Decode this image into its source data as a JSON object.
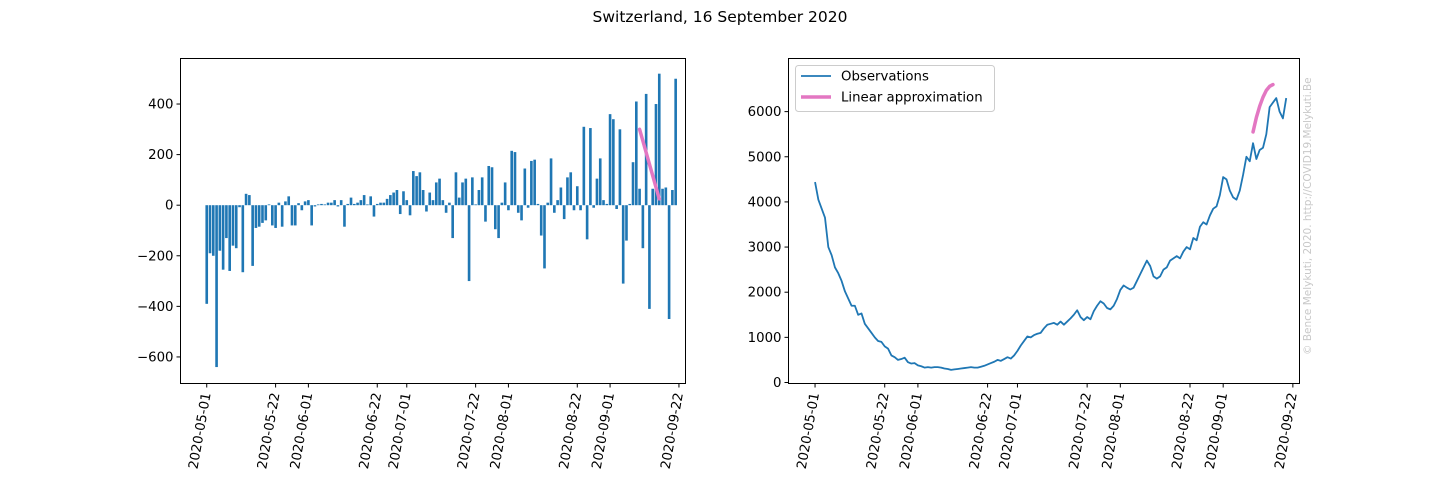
{
  "figure": {
    "suptitle": "Switzerland, 16 September 2020",
    "watermark": "© Bence Melykuti, 2020. http://COVID19.Melykuti.Be"
  },
  "chart_data": [
    {
      "type": "bar",
      "xlim": [
        "2020-04-23",
        "2020-09-24"
      ],
      "ylim": [
        -705,
        580
      ],
      "yticks": [
        400,
        200,
        0,
        -200,
        -400,
        -600
      ],
      "ytick_labels": [
        "400",
        "200",
        "0",
        "−200",
        "−400",
        "−600"
      ],
      "xticks": [
        "2020-05-01",
        "2020-05-22",
        "2020-06-01",
        "2020-06-22",
        "2020-07-01",
        "2020-07-22",
        "2020-08-01",
        "2020-08-22",
        "2020-09-01",
        "2020-09-22"
      ],
      "bar_color": "#1f77b4",
      "line_color": "#e377c2",
      "series": [
        {
          "type": "bar",
          "x_start": "2020-05-01",
          "values": [
            -390,
            -190,
            -200,
            -640,
            -180,
            -255,
            -130,
            -260,
            -160,
            -170,
            -8,
            -265,
            45,
            40,
            -240,
            -90,
            -85,
            -70,
            -60,
            3,
            -80,
            -90,
            10,
            -85,
            15,
            35,
            -80,
            -80,
            8,
            -20,
            15,
            20,
            -80,
            -5,
            3,
            5,
            3,
            10,
            10,
            20,
            -5,
            20,
            -85,
            5,
            30,
            5,
            10,
            20,
            40,
            3,
            35,
            -45,
            5,
            10,
            10,
            25,
            40,
            50,
            60,
            -35,
            55,
            20,
            -40,
            135,
            115,
            130,
            60,
            -25,
            50,
            20,
            90,
            105,
            20,
            -30,
            10,
            -130,
            130,
            30,
            90,
            105,
            -300,
            110,
            3,
            60,
            110,
            -65,
            155,
            150,
            -95,
            -130,
            10,
            90,
            -20,
            215,
            210,
            -30,
            -60,
            145,
            -10,
            175,
            180,
            5,
            -120,
            -250,
            10,
            185,
            -30,
            20,
            70,
            -55,
            110,
            130,
            -20,
            75,
            -20,
            310,
            -135,
            305,
            -10,
            105,
            185,
            20,
            5,
            360,
            340,
            -15,
            300,
            -310,
            -140,
            5,
            170,
            410,
            65,
            -170,
            440,
            -410,
            65,
            400,
            520,
            65,
            70,
            -450,
            60,
            500
          ]
        },
        {
          "type": "line",
          "name": "",
          "points": [
            [
              "2020-09-10",
              300
            ],
            [
              "2020-09-16",
              25
            ]
          ]
        }
      ]
    },
    {
      "type": "line",
      "xlim": [
        "2020-04-23",
        "2020-09-24"
      ],
      "ylim": [
        0,
        6800
      ],
      "yticks": [
        0,
        1000,
        2000,
        3000,
        4000,
        5000,
        6000
      ],
      "xticks": [
        "2020-05-01",
        "2020-05-22",
        "2020-06-01",
        "2020-06-22",
        "2020-07-01",
        "2020-07-22",
        "2020-08-01",
        "2020-08-22",
        "2020-09-01",
        "2020-09-22"
      ],
      "legend_position": "upper left",
      "series": [
        {
          "name": "Observations",
          "color": "#1f77b4",
          "x_start": "2020-05-01",
          "values": [
            4440,
            4050,
            3850,
            3650,
            3000,
            2820,
            2550,
            2420,
            2250,
            2020,
            1860,
            1700,
            1700,
            1500,
            1530,
            1300,
            1200,
            1100,
            1000,
            920,
            900,
            800,
            750,
            600,
            560,
            500,
            520,
            550,
            450,
            420,
            430,
            380,
            360,
            330,
            340,
            330,
            340,
            340,
            330,
            310,
            300,
            280,
            290,
            300,
            310,
            320,
            330,
            340,
            330,
            330,
            350,
            370,
            400,
            430,
            460,
            500,
            480,
            520,
            560,
            530,
            600,
            700,
            820,
            920,
            1020,
            1000,
            1050,
            1080,
            1100,
            1200,
            1280,
            1300,
            1320,
            1280,
            1350,
            1280,
            1350,
            1420,
            1500,
            1600,
            1450,
            1380,
            1450,
            1400,
            1580,
            1700,
            1800,
            1750,
            1650,
            1620,
            1700,
            1850,
            2050,
            2150,
            2100,
            2060,
            2100,
            2250,
            2400,
            2550,
            2700,
            2580,
            2350,
            2300,
            2350,
            2500,
            2550,
            2700,
            2750,
            2800,
            2750,
            2900,
            3000,
            2950,
            3200,
            3150,
            3450,
            3550,
            3500,
            3700,
            3850,
            3900,
            4150,
            4550,
            4500,
            4250,
            4100,
            4050,
            4250,
            4600,
            5000,
            4900,
            5300,
            4950,
            5150,
            5200,
            5500,
            6100,
            6200,
            6300,
            6000,
            5850,
            6300
          ]
        },
        {
          "name": "Linear approximation",
          "color": "#e377c2",
          "points": [
            [
              "2020-09-10",
              5550
            ],
            [
              "2020-09-11",
              5870
            ],
            [
              "2020-09-12",
              6120
            ],
            [
              "2020-09-13",
              6320
            ],
            [
              "2020-09-14",
              6470
            ],
            [
              "2020-09-15",
              6560
            ],
            [
              "2020-09-16",
              6600
            ]
          ]
        }
      ]
    }
  ]
}
